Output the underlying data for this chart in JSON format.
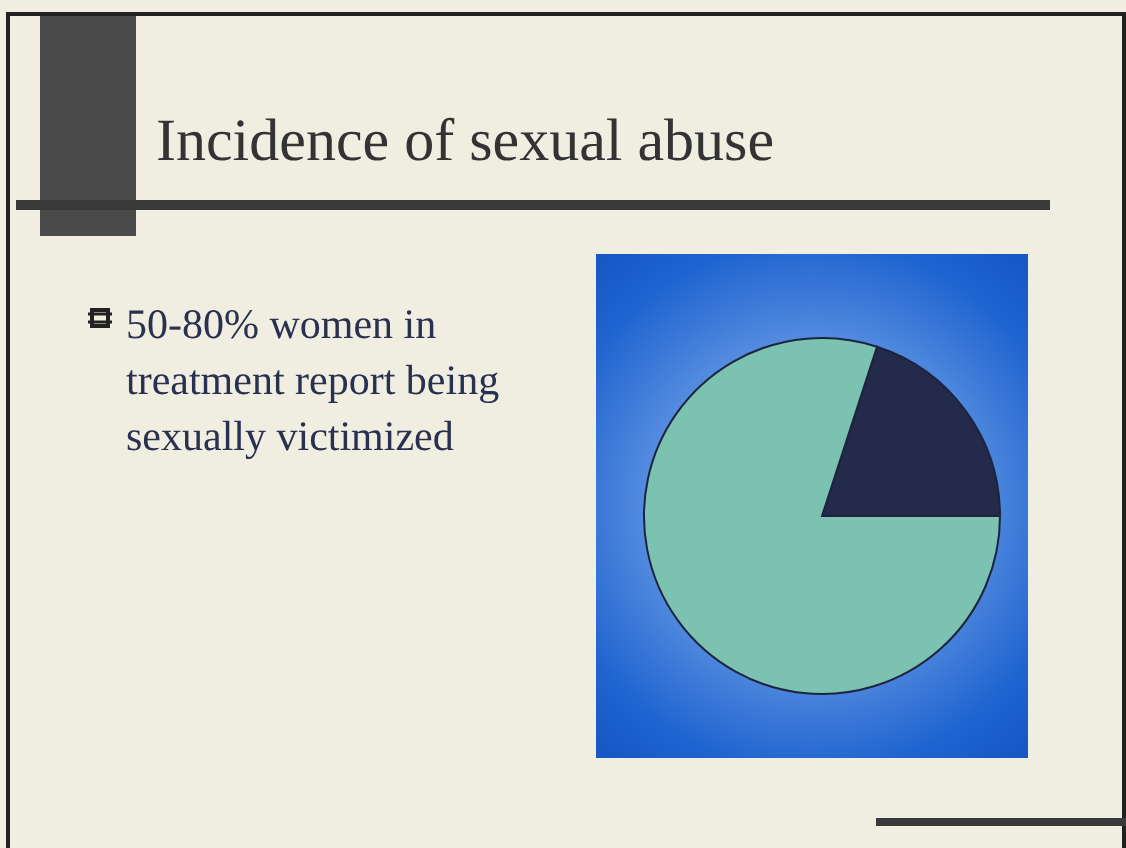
{
  "chart_data": {
    "type": "pie",
    "title": "Incidence of sexual abuse",
    "annotations": [
      "50-80% women in treatment report being sexually victimized"
    ],
    "categories": [
      null,
      null
    ],
    "values": [
      20,
      80
    ],
    "colors": [
      "#242b4a",
      "#7cc2b0"
    ],
    "legend": false
  }
}
